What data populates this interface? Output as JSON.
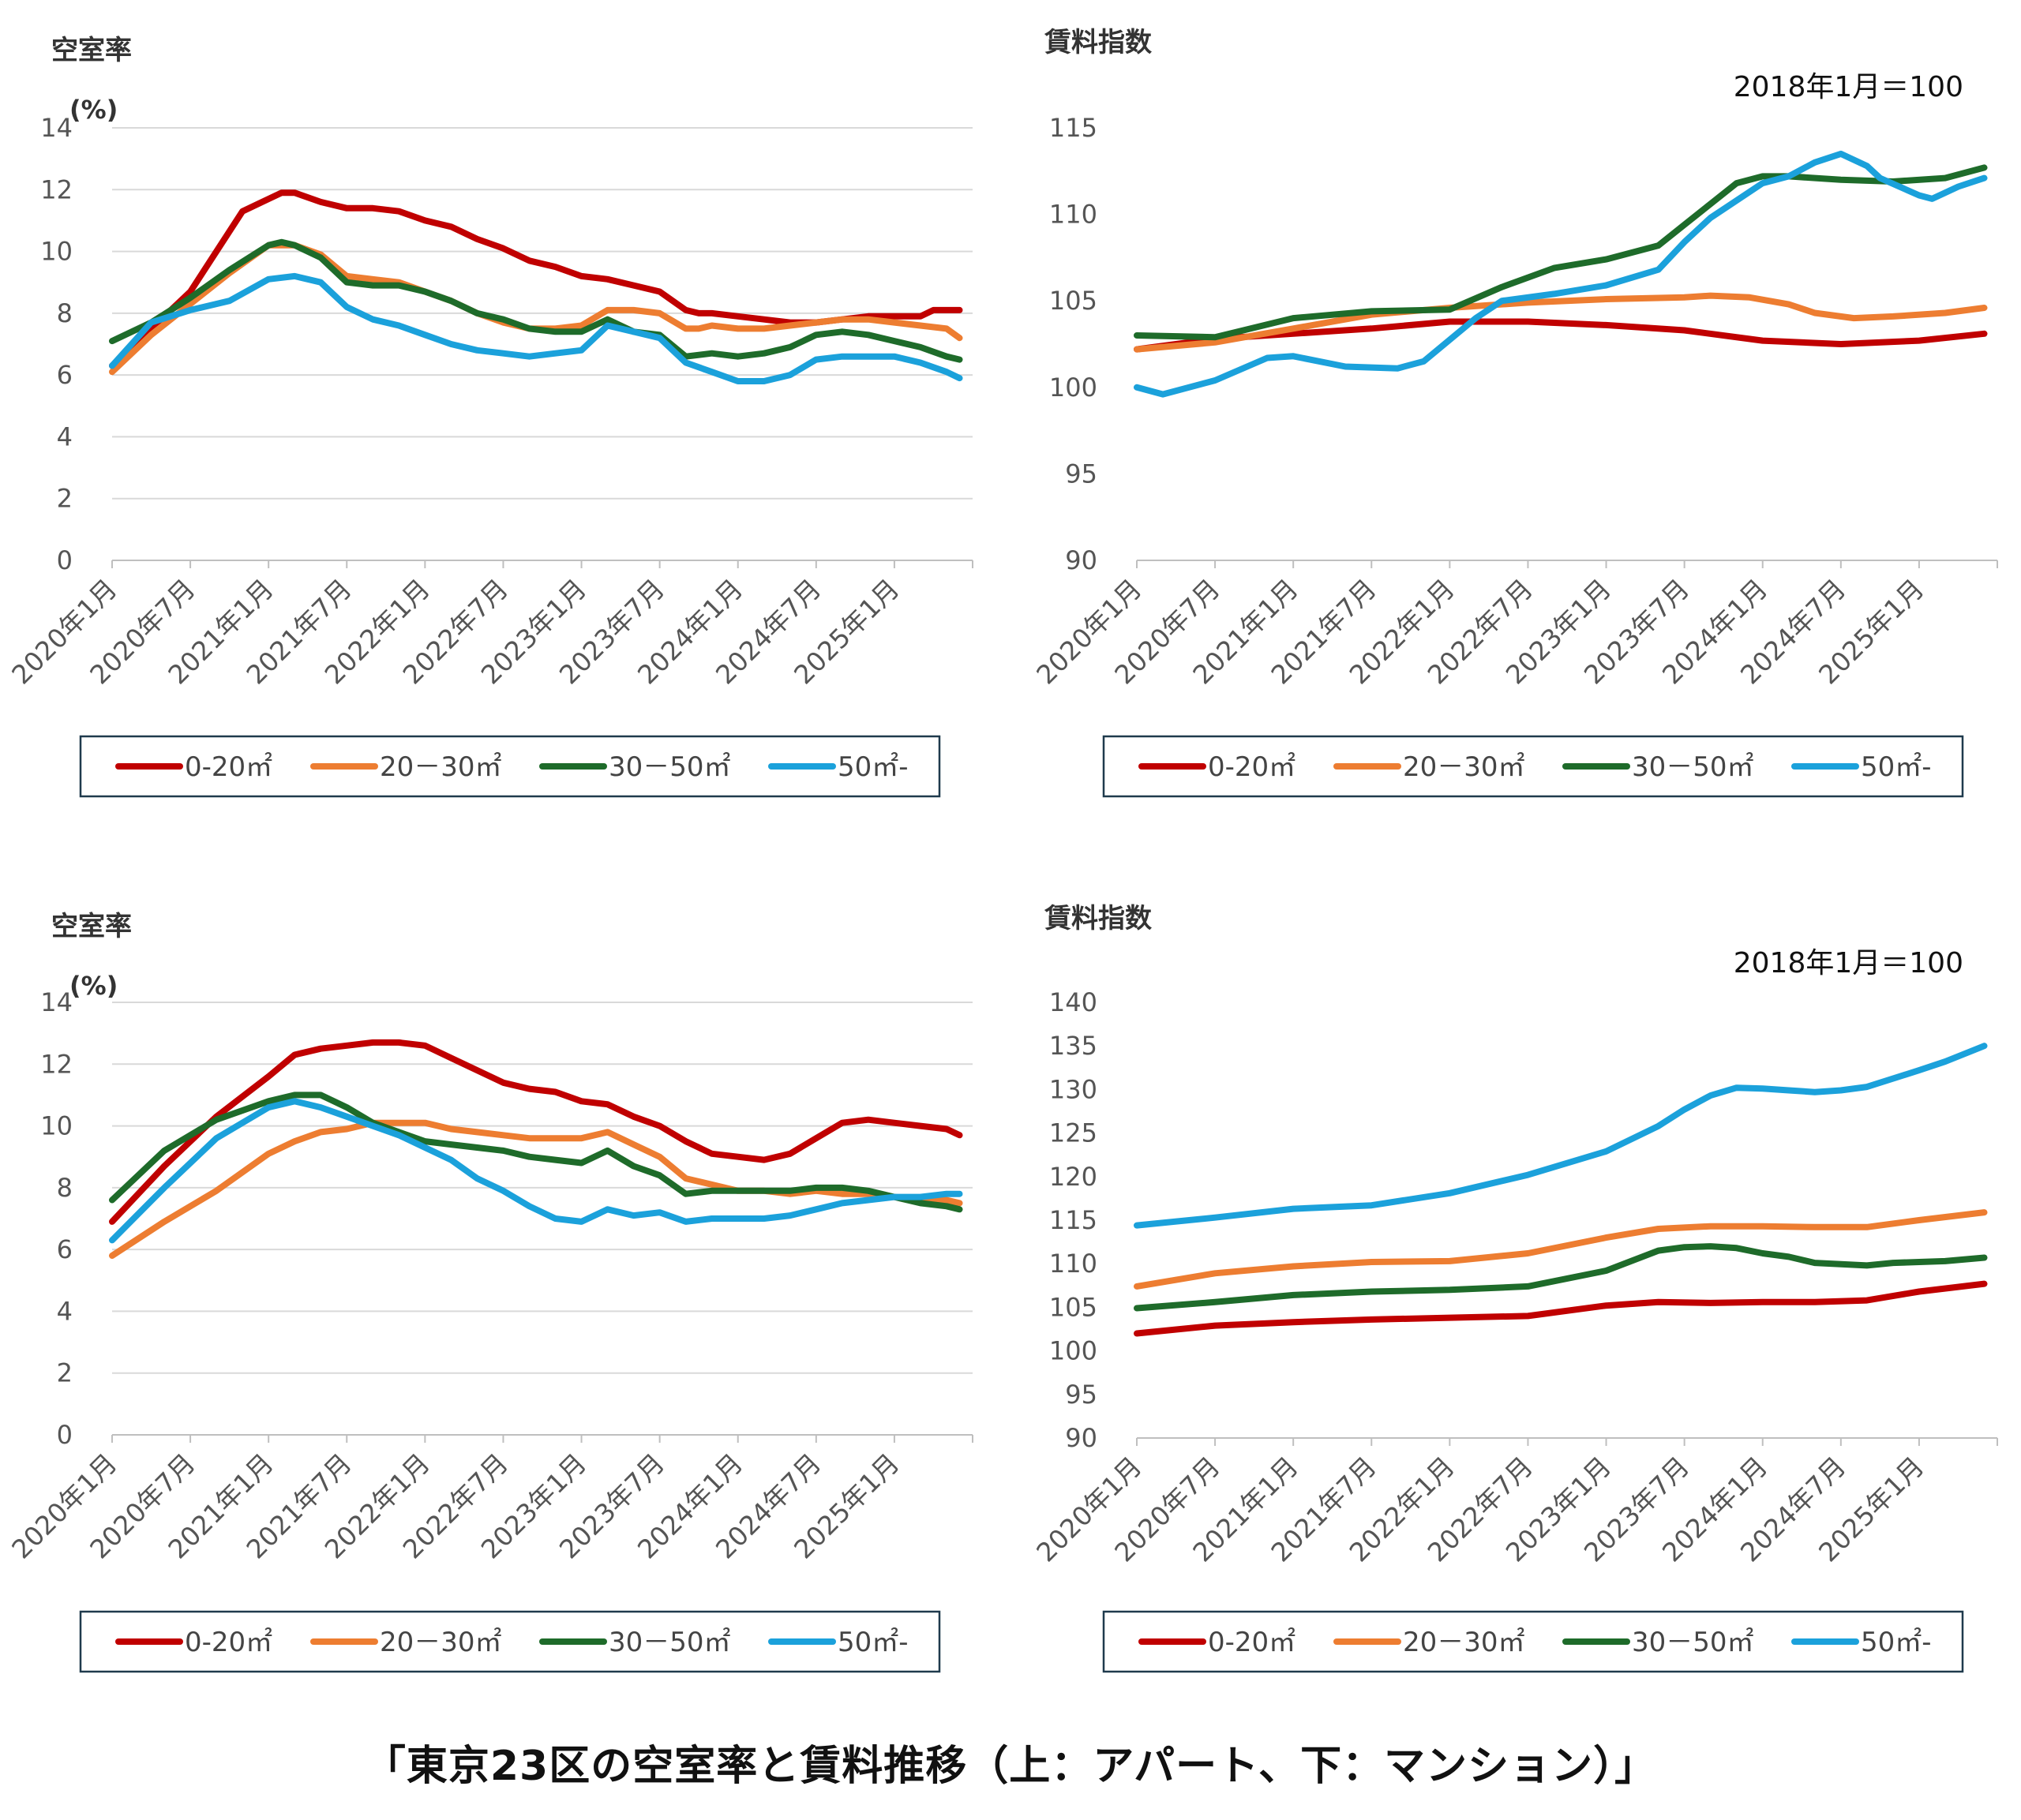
{
  "caption": "「東京23区の空室率と賃料推移（上：アパート、下：マンション）」",
  "colors": {
    "s0_20": "#C00000",
    "s20_30": "#ED7D31",
    "s30_50": "#1E6B2A",
    "s50": "#1BA1DB"
  },
  "chart_data": [
    {
      "type": "line",
      "title": "空室率",
      "ylabel": "(%)",
      "ylim": [
        0,
        14
      ],
      "yticks": [
        "0",
        "2",
        "4",
        "6",
        "8",
        "10",
        "12",
        "14"
      ],
      "xticks": [
        "2020年1月",
        "2020年7月",
        "2021年1月",
        "2021年7月",
        "2022年1月",
        "2022年7月",
        "2023年1月",
        "2023年7月",
        "2024年1月",
        "2024年7月",
        "2025年1月"
      ],
      "xlim": [
        0,
        66
      ],
      "grid": true,
      "legend": "bottom",
      "series": [
        {
          "name": "0-20㎡",
          "color": "#C00000",
          "x": [
            0,
            6,
            10,
            13,
            14,
            16,
            18,
            20,
            22,
            24,
            26,
            28,
            30,
            32,
            34,
            36,
            38,
            40,
            42,
            44,
            45,
            46,
            48,
            50,
            52,
            54,
            56,
            58,
            60,
            62,
            63,
            64,
            65
          ],
          "y": [
            6.3,
            8.7,
            11.3,
            11.9,
            11.9,
            11.6,
            11.4,
            11.4,
            11.3,
            11.0,
            10.8,
            10.4,
            10.1,
            9.7,
            9.5,
            9.2,
            9.1,
            8.9,
            8.7,
            8.1,
            8.0,
            8.0,
            7.9,
            7.8,
            7.7,
            7.7,
            7.8,
            7.9,
            7.9,
            7.9,
            8.1,
            8.1,
            8.1
          ]
        },
        {
          "name": "20－30㎡",
          "color": "#ED7D31",
          "x": [
            0,
            3,
            6,
            9,
            12,
            14,
            16,
            18,
            20,
            22,
            24,
            26,
            28,
            30,
            32,
            34,
            36,
            38,
            40,
            42,
            44,
            45,
            46,
            48,
            50,
            52,
            54,
            56,
            58,
            60,
            62,
            64,
            65
          ],
          "y": [
            6.1,
            7.3,
            8.3,
            9.3,
            10.2,
            10.2,
            9.9,
            9.2,
            9.1,
            9.0,
            8.7,
            8.4,
            8.0,
            7.7,
            7.5,
            7.5,
            7.6,
            8.1,
            8.1,
            8.0,
            7.5,
            7.5,
            7.6,
            7.5,
            7.5,
            7.6,
            7.7,
            7.8,
            7.8,
            7.7,
            7.6,
            7.5,
            7.2
          ]
        },
        {
          "name": "30－50㎡",
          "color": "#1E6B2A",
          "x": [
            0,
            3,
            6,
            9,
            12,
            13,
            14,
            16,
            18,
            20,
            22,
            24,
            26,
            28,
            30,
            32,
            34,
            36,
            38,
            40,
            42,
            44,
            46,
            48,
            50,
            52,
            54,
            56,
            58,
            60,
            62,
            64,
            65
          ],
          "y": [
            7.1,
            7.7,
            8.5,
            9.4,
            10.2,
            10.3,
            10.2,
            9.8,
            9.0,
            8.9,
            8.9,
            8.7,
            8.4,
            8.0,
            7.8,
            7.5,
            7.4,
            7.4,
            7.8,
            7.4,
            7.3,
            6.6,
            6.7,
            6.6,
            6.7,
            6.9,
            7.3,
            7.4,
            7.3,
            7.1,
            6.9,
            6.6,
            6.5
          ]
        },
        {
          "name": "50㎡-",
          "color": "#1BA1DB",
          "x": [
            0,
            3,
            6,
            9,
            12,
            14,
            16,
            18,
            20,
            22,
            24,
            26,
            28,
            30,
            32,
            34,
            36,
            38,
            40,
            42,
            44,
            46,
            48,
            50,
            52,
            54,
            56,
            58,
            60,
            62,
            64,
            65
          ],
          "y": [
            6.3,
            7.7,
            8.1,
            8.4,
            9.1,
            9.2,
            9.0,
            8.2,
            7.8,
            7.6,
            7.3,
            7.0,
            6.8,
            6.7,
            6.6,
            6.7,
            6.8,
            7.6,
            7.4,
            7.2,
            6.4,
            6.1,
            5.8,
            5.8,
            6.0,
            6.5,
            6.6,
            6.6,
            6.6,
            6.4,
            6.1,
            5.9
          ]
        }
      ]
    },
    {
      "type": "line",
      "title": "賃料指数",
      "annotation": "2018年1月＝100",
      "ylim": [
        90,
        115
      ],
      "yticks": [
        "90",
        "95",
        "100",
        "105",
        "110",
        "115"
      ],
      "xticks": [
        "2020年1月",
        "2020年7月",
        "2021年1月",
        "2021年7月",
        "2022年1月",
        "2022年7月",
        "2023年1月",
        "2023年7月",
        "2024年1月",
        "2024年7月",
        "2025年1月"
      ],
      "xlim": [
        0,
        66
      ],
      "grid": false,
      "legend": "bottom",
      "series": [
        {
          "name": "0-20㎡",
          "color": "#C00000",
          "x": [
            0,
            6,
            12,
            18,
            24,
            30,
            36,
            42,
            48,
            54,
            60,
            65
          ],
          "y": [
            102.2,
            102.8,
            103.1,
            103.4,
            103.8,
            103.8,
            103.6,
            103.3,
            102.7,
            102.5,
            102.7,
            103.1
          ]
        },
        {
          "name": "20－30㎡",
          "color": "#ED7D31",
          "x": [
            0,
            6,
            12,
            18,
            24,
            30,
            36,
            42,
            44,
            47,
            50,
            52,
            55,
            58,
            62,
            65
          ],
          "y": [
            102.2,
            102.6,
            103.4,
            104.2,
            104.6,
            104.9,
            105.1,
            105.2,
            105.3,
            105.2,
            104.8,
            104.3,
            104.0,
            104.1,
            104.3,
            104.6
          ]
        },
        {
          "name": "30－50㎡",
          "color": "#1E6B2A",
          "x": [
            0,
            6,
            12,
            18,
            24,
            28,
            32,
            36,
            40,
            42,
            46,
            48,
            50,
            54,
            58,
            62,
            65
          ],
          "y": [
            103.0,
            102.9,
            104.0,
            104.4,
            104.5,
            105.8,
            106.9,
            107.4,
            108.2,
            109.4,
            111.8,
            112.2,
            112.2,
            112.0,
            111.9,
            112.1,
            112.7
          ]
        },
        {
          "name": "50㎡-",
          "color": "#1BA1DB",
          "x": [
            0,
            2,
            6,
            10,
            12,
            16,
            20,
            22,
            26,
            28,
            32,
            36,
            40,
            42,
            44,
            48,
            50,
            52,
            54,
            56,
            57,
            60,
            61,
            63,
            65
          ],
          "y": [
            100.0,
            99.6,
            100.4,
            101.7,
            101.8,
            101.2,
            101.1,
            101.5,
            104.0,
            105.0,
            105.4,
            105.9,
            106.8,
            108.4,
            109.8,
            111.8,
            112.2,
            113.0,
            113.5,
            112.8,
            112.1,
            111.1,
            110.9,
            111.6,
            112.1
          ]
        }
      ]
    },
    {
      "type": "line",
      "title": "空室率",
      "ylabel": "(%)",
      "ylim": [
        0,
        14
      ],
      "yticks": [
        "0",
        "2",
        "4",
        "6",
        "8",
        "10",
        "12",
        "14"
      ],
      "xticks": [
        "2020年1月",
        "2020年7月",
        "2021年1月",
        "2021年7月",
        "2022年1月",
        "2022年7月",
        "2023年1月",
        "2023年7月",
        "2024年1月",
        "2024年7月",
        "2025年1月"
      ],
      "xlim": [
        0,
        66
      ],
      "grid": true,
      "legend": "bottom",
      "series": [
        {
          "name": "0-20㎡",
          "color": "#C00000",
          "x": [
            0,
            4,
            8,
            12,
            14,
            16,
            18,
            20,
            22,
            24,
            26,
            28,
            30,
            32,
            34,
            36,
            38,
            40,
            42,
            44,
            46,
            48,
            50,
            52,
            54,
            56,
            58,
            60,
            62,
            64,
            65
          ],
          "y": [
            6.9,
            8.7,
            10.3,
            11.6,
            12.3,
            12.5,
            12.6,
            12.7,
            12.7,
            12.6,
            12.2,
            11.8,
            11.4,
            11.2,
            11.1,
            10.8,
            10.7,
            10.3,
            10.0,
            9.5,
            9.1,
            9.0,
            8.9,
            9.1,
            9.6,
            10.1,
            10.2,
            10.1,
            10.0,
            9.9,
            9.7
          ]
        },
        {
          "name": "20－30㎡",
          "color": "#ED7D31",
          "x": [
            0,
            4,
            8,
            12,
            14,
            16,
            18,
            20,
            22,
            24,
            26,
            28,
            30,
            32,
            34,
            36,
            38,
            40,
            42,
            44,
            46,
            48,
            50,
            52,
            54,
            56,
            58,
            60,
            62,
            64,
            65
          ],
          "y": [
            5.8,
            6.9,
            7.9,
            9.1,
            9.5,
            9.8,
            9.9,
            10.1,
            10.1,
            10.1,
            9.9,
            9.8,
            9.7,
            9.6,
            9.6,
            9.6,
            9.8,
            9.4,
            9.0,
            8.3,
            8.1,
            7.9,
            7.9,
            7.8,
            7.9,
            7.8,
            7.8,
            7.7,
            7.6,
            7.6,
            7.5
          ]
        },
        {
          "name": "30－50㎡",
          "color": "#1E6B2A",
          "x": [
            0,
            4,
            8,
            12,
            14,
            16,
            18,
            20,
            22,
            24,
            26,
            28,
            30,
            32,
            34,
            36,
            38,
            40,
            42,
            44,
            46,
            48,
            50,
            52,
            54,
            56,
            58,
            60,
            62,
            64,
            65
          ],
          "y": [
            7.6,
            9.2,
            10.2,
            10.8,
            11.0,
            11.0,
            10.6,
            10.1,
            9.8,
            9.5,
            9.4,
            9.3,
            9.2,
            9.0,
            8.9,
            8.8,
            9.2,
            8.7,
            8.4,
            7.8,
            7.9,
            7.9,
            7.9,
            7.9,
            8.0,
            8.0,
            7.9,
            7.7,
            7.5,
            7.4,
            7.3
          ]
        },
        {
          "name": "50㎡-",
          "color": "#1BA1DB",
          "x": [
            0,
            4,
            8,
            12,
            14,
            16,
            18,
            20,
            22,
            24,
            26,
            28,
            30,
            32,
            34,
            36,
            38,
            40,
            42,
            44,
            46,
            48,
            50,
            52,
            54,
            56,
            58,
            60,
            62,
            64,
            65
          ],
          "y": [
            6.3,
            8.0,
            9.6,
            10.6,
            10.8,
            10.6,
            10.3,
            10.0,
            9.7,
            9.3,
            8.9,
            8.3,
            7.9,
            7.4,
            7.0,
            6.9,
            7.3,
            7.1,
            7.2,
            6.9,
            7.0,
            7.0,
            7.0,
            7.1,
            7.3,
            7.5,
            7.6,
            7.7,
            7.7,
            7.8,
            7.8
          ]
        }
      ]
    },
    {
      "type": "line",
      "title": "賃料指数",
      "annotation": "2018年1月＝100",
      "ylim": [
        90,
        140
      ],
      "yticks": [
        "90",
        "95",
        "100",
        "105",
        "110",
        "115",
        "120",
        "125",
        "130",
        "135",
        "140"
      ],
      "xticks": [
        "2020年1月",
        "2020年7月",
        "2021年1月",
        "2021年7月",
        "2022年1月",
        "2022年7月",
        "2023年1月",
        "2023年7月",
        "2024年1月",
        "2024年7月",
        "2025年1月"
      ],
      "xlim": [
        0,
        66
      ],
      "grid": false,
      "legend": "bottom",
      "series": [
        {
          "name": "0-20㎡",
          "color": "#C00000",
          "x": [
            0,
            6,
            12,
            18,
            24,
            30,
            36,
            40,
            44,
            48,
            52,
            56,
            60,
            65
          ],
          "y": [
            102.0,
            102.9,
            103.3,
            103.6,
            103.8,
            104.0,
            105.2,
            105.6,
            105.5,
            105.6,
            105.6,
            105.8,
            106.8,
            107.7
          ]
        },
        {
          "name": "20－30㎡",
          "color": "#ED7D31",
          "x": [
            0,
            6,
            12,
            18,
            24,
            30,
            36,
            40,
            44,
            48,
            52,
            56,
            60,
            65
          ],
          "y": [
            107.4,
            108.9,
            109.7,
            110.2,
            110.3,
            111.2,
            113.0,
            114.0,
            114.3,
            114.3,
            114.2,
            114.2,
            115.0,
            115.9
          ]
        },
        {
          "name": "30－50㎡",
          "color": "#1E6B2A",
          "x": [
            0,
            6,
            12,
            18,
            24,
            30,
            36,
            40,
            42,
            44,
            46,
            48,
            50,
            52,
            56,
            58,
            60,
            62,
            65
          ],
          "y": [
            104.9,
            105.6,
            106.4,
            106.8,
            107.0,
            107.4,
            109.2,
            111.5,
            111.9,
            112.0,
            111.8,
            111.2,
            110.8,
            110.1,
            109.8,
            110.1,
            110.2,
            110.3,
            110.7
          ]
        },
        {
          "name": "50㎡-",
          "color": "#1BA1DB",
          "x": [
            0,
            6,
            12,
            18,
            24,
            30,
            36,
            40,
            42,
            44,
            46,
            48,
            50,
            52,
            54,
            56,
            60,
            62,
            64,
            65
          ],
          "y": [
            114.4,
            115.3,
            116.3,
            116.7,
            118.1,
            120.2,
            122.9,
            125.8,
            127.7,
            129.3,
            130.2,
            130.1,
            129.9,
            129.7,
            129.9,
            130.3,
            132.2,
            133.2,
            134.4,
            135.0
          ]
        }
      ]
    }
  ]
}
